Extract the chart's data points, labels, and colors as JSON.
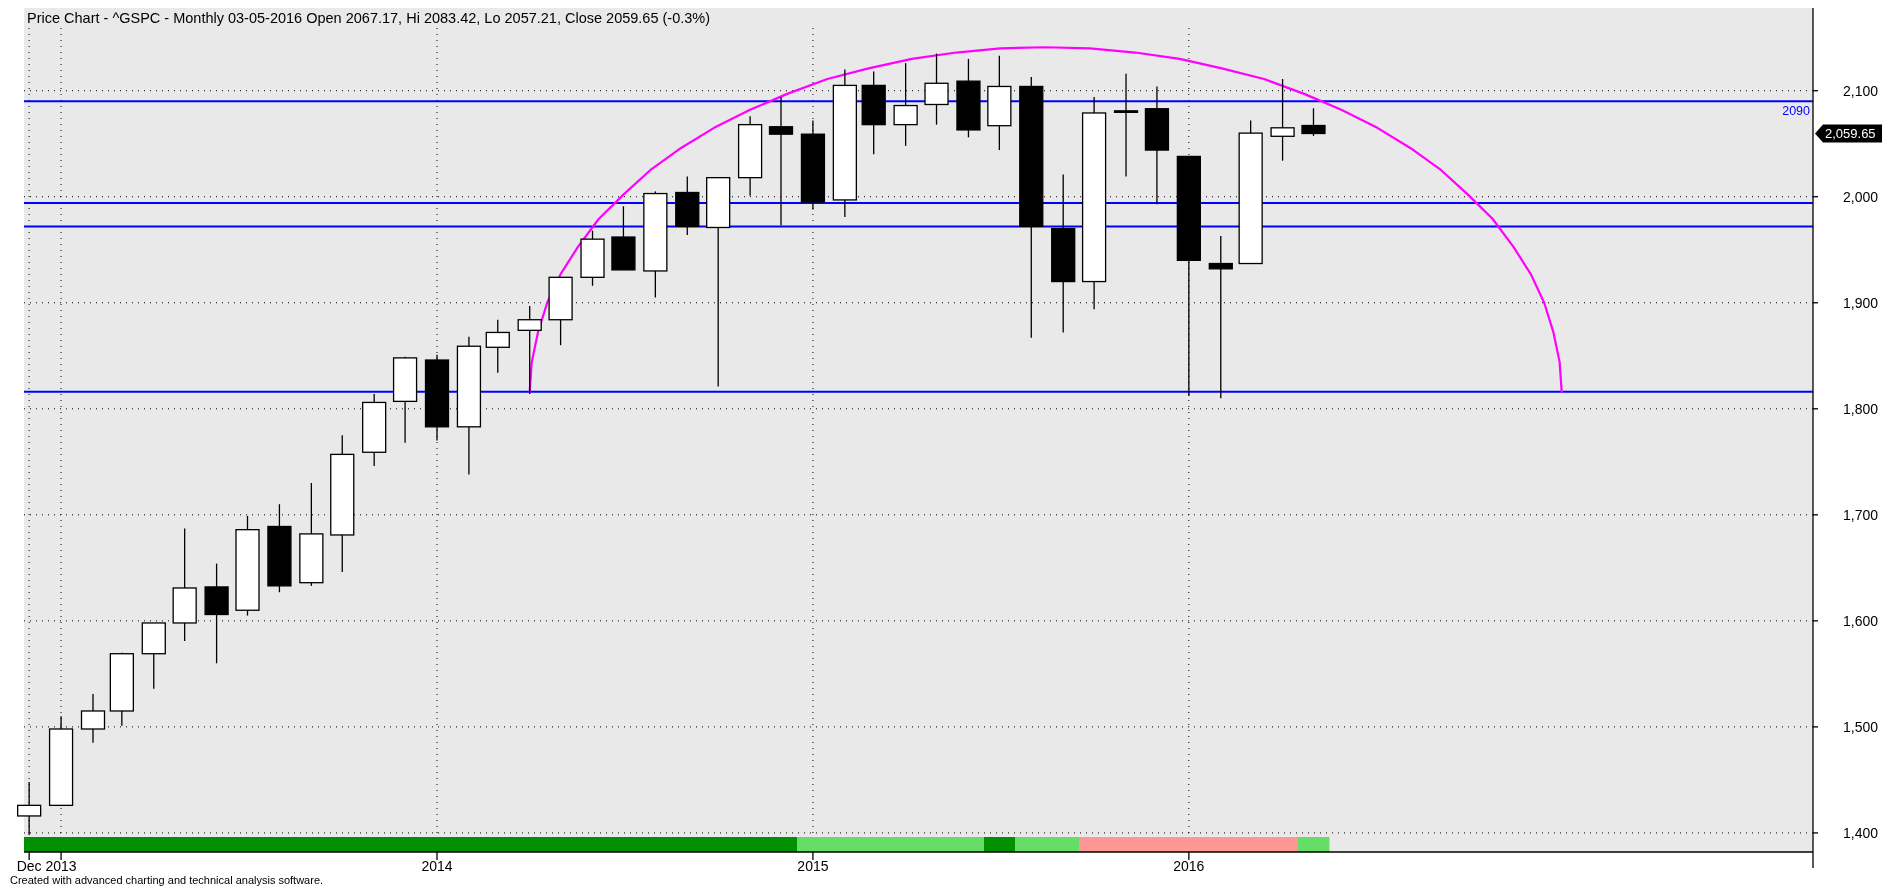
{
  "chart_data": {
    "type": "candlestick",
    "title": "Price Chart - ^GSPC - Monthly 03-05-2016 Open 2067.17, Hi 2083.42, Lo 2057.21, Close 2059.65 (-0.3%)",
    "x": [
      "2012-12",
      "2013-01",
      "2013-02",
      "2013-03",
      "2013-04",
      "2013-05",
      "2013-06",
      "2013-07",
      "2013-08",
      "2013-09",
      "2013-10",
      "2013-11",
      "2013-12",
      "2014-01",
      "2014-02",
      "2014-03",
      "2014-04",
      "2014-05",
      "2014-06",
      "2014-07",
      "2014-08",
      "2014-09",
      "2014-10",
      "2014-11",
      "2014-12",
      "2015-01",
      "2015-02",
      "2015-03",
      "2015-04",
      "2015-05",
      "2015-06",
      "2015-07",
      "2015-08",
      "2015-09",
      "2015-10",
      "2015-11",
      "2015-12",
      "2016-01",
      "2016-02",
      "2016-03",
      "2016-04",
      "2016-05"
    ],
    "ohlc": [
      [
        1416,
        1448,
        1398,
        1426
      ],
      [
        1426,
        1510,
        1426,
        1498
      ],
      [
        1498,
        1531,
        1485,
        1515
      ],
      [
        1515,
        1570,
        1501,
        1569
      ],
      [
        1569,
        1598,
        1536,
        1598
      ],
      [
        1598,
        1687,
        1581,
        1631
      ],
      [
        1632,
        1654,
        1560,
        1606
      ],
      [
        1610,
        1699,
        1605,
        1686
      ],
      [
        1689,
        1710,
        1627,
        1633
      ],
      [
        1636,
        1730,
        1633,
        1682
      ],
      [
        1681,
        1775,
        1646,
        1757
      ],
      [
        1759,
        1814,
        1746,
        1806
      ],
      [
        1807,
        1849,
        1768,
        1848
      ],
      [
        1846,
        1851,
        1770,
        1783
      ],
      [
        1783,
        1868,
        1738,
        1859
      ],
      [
        1858,
        1884,
        1834,
        1872
      ],
      [
        1874,
        1897,
        1814,
        1884
      ],
      [
        1884,
        1924,
        1860,
        1924
      ],
      [
        1924,
        1968,
        1916,
        1960
      ],
      [
        1962,
        1991,
        1931,
        1931
      ],
      [
        1930,
        2005,
        1905,
        2003
      ],
      [
        2004,
        2019,
        1964,
        1972
      ],
      [
        1971,
        2018,
        1821,
        2018
      ],
      [
        2018,
        2076,
        2001,
        2068
      ],
      [
        2066,
        2094,
        1973,
        2059
      ],
      [
        2059,
        2072,
        1988,
        1995
      ],
      [
        1997,
        2120,
        1981,
        2105
      ],
      [
        2105,
        2118,
        2040,
        2068
      ],
      [
        2068,
        2126,
        2048,
        2086
      ],
      [
        2087,
        2135,
        2068,
        2107
      ],
      [
        2109,
        2130,
        2056,
        2063
      ],
      [
        2067,
        2133,
        2044,
        2104
      ],
      [
        2104,
        2113,
        1867,
        1972
      ],
      [
        1970,
        2021,
        1872,
        1920
      ],
      [
        1920,
        2094,
        1894,
        2079
      ],
      [
        2081,
        2116,
        2019,
        2080
      ],
      [
        2083,
        2104,
        1993,
        2044
      ],
      [
        2038,
        2038,
        1812,
        1940
      ],
      [
        1937,
        1963,
        1810,
        1932
      ],
      [
        1937,
        2072,
        1937,
        2060
      ],
      [
        2057,
        2111,
        2034,
        2065
      ],
      [
        2067.17,
        2083.42,
        2057.21,
        2059.65
      ]
    ],
    "series": [
      {
        "type": "line",
        "color": "#ff00ff",
        "x": [
          "2014-04-01",
          "2014-04-03",
          "2014-04-09",
          "2014-04-18",
          "2014-05-01",
          "2014-05-18",
          "2014-06-07",
          "2014-07-01",
          "2014-07-27",
          "2014-08-26",
          "2014-09-27",
          "2014-11-01",
          "2014-12-07",
          "2015-01-15",
          "2015-02-24",
          "2015-04-07",
          "2015-05-20",
          "2015-07-02",
          "2015-08-15",
          "2015-09-27",
          "2015-11-10",
          "2015-12-23",
          "2016-02-02",
          "2016-03-14",
          "2016-04-22",
          "2016-05-28",
          "2016-07-02",
          "2016-08-03",
          "2016-09-02",
          "2016-09-28",
          "2016-10-22",
          "2016-11-11",
          "2016-11-28",
          "2016-12-11",
          "2016-12-20",
          "2016-12-26",
          "2016-12-28"
        ],
        "values": [
          1816,
          1844,
          1872,
          1900,
          1927,
          1953,
          1979,
          2002,
          2025,
          2046,
          2065,
          2082,
          2097,
          2111,
          2121,
          2130,
          2136,
          2140,
          2141,
          2140,
          2136,
          2130,
          2121,
          2111,
          2097,
          2082,
          2065,
          2046,
          2025,
          2002,
          1979,
          1953,
          1927,
          1900,
          1872,
          1844,
          1816
        ]
      }
    ],
    "xlim": [
      "2012-11-26",
      "2017-08-29"
    ],
    "ylim": [
      1382,
      2178
    ],
    "xticks": [
      {
        "value": "2012-12",
        "label": "Dec"
      },
      {
        "value": "2013-01",
        "label": "2013"
      },
      {
        "value": "2014-01",
        "label": "2014"
      },
      {
        "value": "2015-01",
        "label": "2015"
      },
      {
        "value": "2016-01",
        "label": "2016"
      }
    ],
    "yticks": [
      {
        "value": 1400,
        "label": "1,400"
      },
      {
        "value": 1500,
        "label": "1,500"
      },
      {
        "value": 1600,
        "label": "1,600"
      },
      {
        "value": 1700,
        "label": "1,700"
      },
      {
        "value": 1800,
        "label": "1,800"
      },
      {
        "value": 1900,
        "label": "1,900"
      },
      {
        "value": 2000,
        "label": "2,000"
      },
      {
        "value": 2100,
        "label": "2,100"
      }
    ],
    "grid": true,
    "ref_lines": [
      {
        "axis": "y",
        "value": 2090,
        "label": "2090",
        "color": "#0000ff"
      },
      {
        "axis": "y",
        "value": 1994,
        "color": "#0000ff"
      },
      {
        "axis": "y",
        "value": 1972,
        "color": "#0000ff"
      },
      {
        "axis": "y",
        "value": 1816,
        "color": "#0000ff"
      }
    ],
    "annotations": [
      "2,059.65",
      "Created with advanced charting and technical analysis software."
    ]
  }
}
